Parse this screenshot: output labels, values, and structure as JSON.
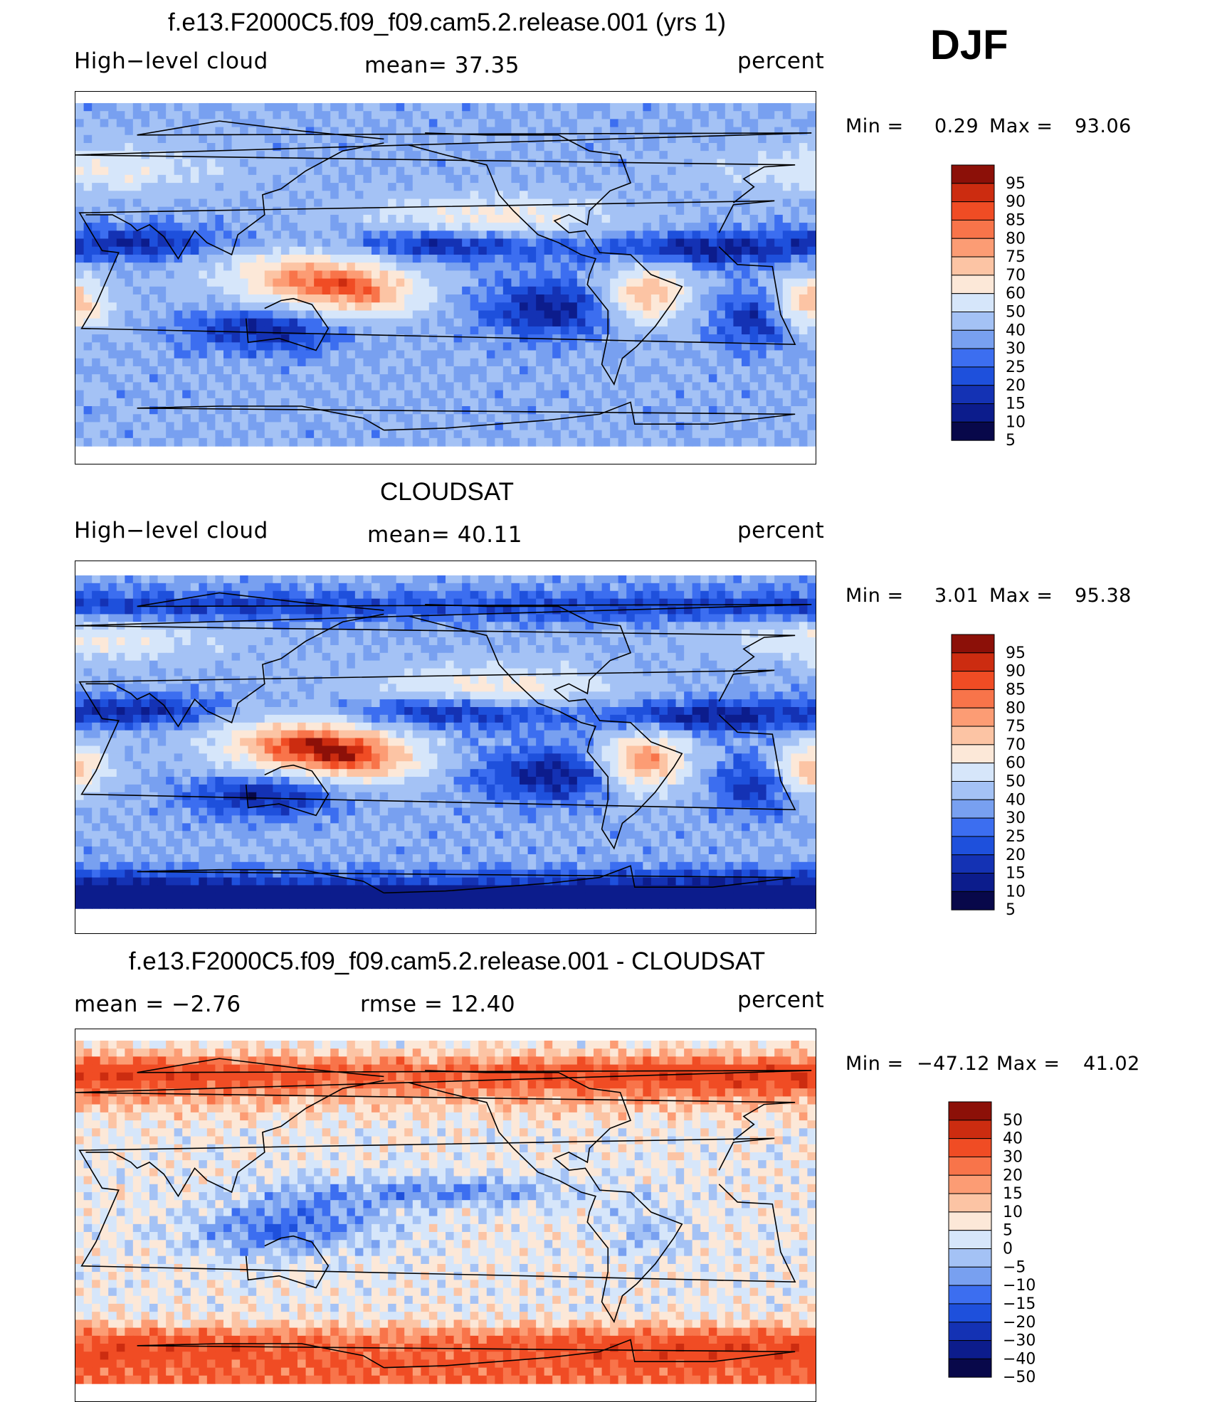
{
  "season": "DJF",
  "colors": {
    "abs_scale": [
      "#08084a",
      "#0c1c8c",
      "#1432b4",
      "#1e50dc",
      "#3c6ef0",
      "#78a0f0",
      "#a4c2f5",
      "#d6e6fa",
      "#fce8d8",
      "#fcc4a4",
      "#fc9c74",
      "#f8744a",
      "#f04c24",
      "#cc2c10",
      "#8c1008"
    ],
    "diff_scale": [
      "#08084a",
      "#0c1c8c",
      "#1432b4",
      "#1e50dc",
      "#3c6ef0",
      "#78a0f0",
      "#a4c2f5",
      "#d6e6fa",
      "#fce8d8",
      "#fcc4a4",
      "#fc9c74",
      "#f8744a",
      "#f04c24",
      "#cc2c10",
      "#8c1008"
    ],
    "coast": "#000000"
  },
  "panels": [
    {
      "title": "f.e13.F2000C5.f09_f09.cam5.2.release.001 (yrs 1)",
      "left_label": "High−level cloud",
      "center_label": "mean=   37.35",
      "right_label": "percent",
      "min_label": "Min  =",
      "min_value": "0.29",
      "max_label": "Max  =",
      "max_value": "93.06",
      "colorbar_labels": [
        "95",
        "90",
        "85",
        "80",
        "75",
        "70",
        "60",
        "50",
        "40",
        "30",
        "25",
        "20",
        "15",
        "10",
        "5"
      ],
      "field": "model"
    },
    {
      "title": "CLOUDSAT",
      "left_label": "High−level cloud",
      "center_label": "mean=   40.11",
      "right_label": "percent",
      "min_label": "Min  =",
      "min_value": "3.01",
      "max_label": "Max  =",
      "max_value": "95.38",
      "colorbar_labels": [
        "95",
        "90",
        "85",
        "80",
        "75",
        "70",
        "60",
        "50",
        "40",
        "30",
        "25",
        "20",
        "15",
        "10",
        "5"
      ],
      "field": "obs"
    },
    {
      "title": "f.e13.F2000C5.f09_f09.cam5.2.release.001 - CLOUDSAT",
      "left_label": "mean  =   −2.76",
      "center_label": "rmse  =   12.40",
      "right_label": "percent",
      "min_label": "Min  =",
      "min_value": "−47.12",
      "max_label": "Max  =",
      "max_value": "41.02",
      "colorbar_labels": [
        "50",
        "40",
        "30",
        "20",
        "15",
        "10",
        "5",
        "0",
        "−5",
        "−10",
        "−15",
        "−20",
        "−30",
        "−40",
        "−50"
      ],
      "field": "diff"
    }
  ]
}
